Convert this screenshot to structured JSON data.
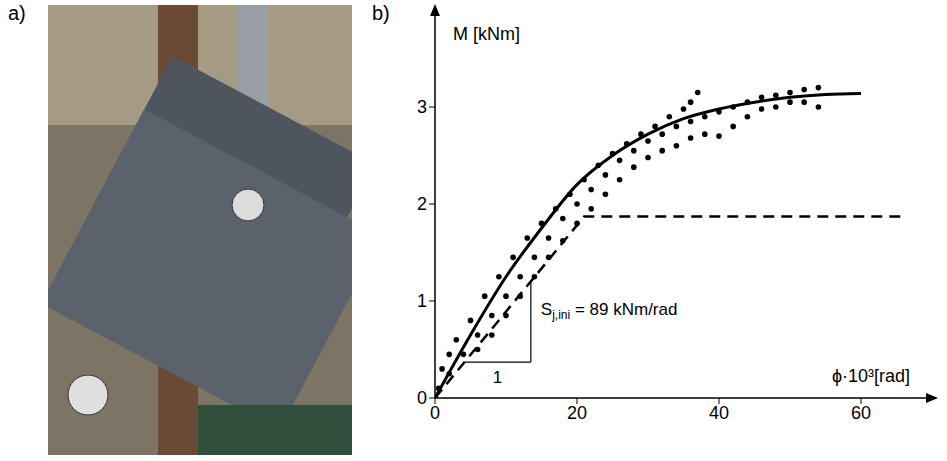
{
  "panel_labels": [
    "a)",
    "b)"
  ],
  "chart_data": {
    "type": "line",
    "x_label": "ϕ·10³[rad]",
    "y_label": "M [kNm]",
    "xlim": [
      0,
      70
    ],
    "ylim": [
      0,
      4
    ],
    "xticks": [
      0,
      20,
      40,
      60
    ],
    "yticks": [
      0,
      1,
      2,
      3
    ],
    "grid": false,
    "series": [
      {
        "type": "scatter",
        "marker": "dot",
        "color": "#000000",
        "x": [
          0,
          0.5,
          1,
          2,
          3,
          5,
          7,
          9,
          11,
          13,
          15,
          17,
          19,
          21,
          23,
          25,
          27,
          29,
          31,
          33,
          35,
          36,
          37,
          2,
          4,
          6,
          8,
          10,
          12,
          14,
          16,
          18,
          20,
          22,
          24,
          26,
          28,
          30,
          32,
          34,
          36,
          38,
          40,
          42,
          44,
          46,
          48,
          50,
          52,
          54,
          6,
          8,
          10,
          12,
          14,
          16,
          18,
          20,
          22,
          24,
          26,
          28,
          30,
          32,
          34,
          36,
          38,
          40,
          42,
          44,
          46,
          48,
          50,
          52,
          54
        ],
        "values": [
          0,
          0.1,
          0.3,
          0.45,
          0.6,
          0.8,
          1.05,
          1.25,
          1.45,
          1.65,
          1.8,
          1.95,
          2.1,
          2.25,
          2.4,
          2.52,
          2.62,
          2.72,
          2.8,
          2.9,
          2.98,
          3.05,
          3.15,
          0.25,
          0.45,
          0.65,
          0.85,
          1.05,
          1.25,
          1.45,
          1.65,
          1.85,
          2.0,
          2.15,
          2.3,
          2.45,
          2.55,
          2.65,
          2.72,
          2.8,
          2.85,
          2.9,
          2.95,
          3.0,
          3.05,
          3.1,
          3.12,
          3.15,
          3.18,
          3.2,
          0.5,
          0.65,
          0.85,
          1.05,
          1.25,
          1.45,
          1.62,
          1.8,
          1.95,
          2.1,
          2.25,
          2.38,
          2.48,
          2.55,
          2.6,
          2.68,
          2.72,
          2.7,
          2.8,
          2.9,
          2.98,
          3.0,
          3.05,
          3.05,
          3.0
        ]
      },
      {
        "type": "line",
        "line_style": "solid",
        "color": "#000000",
        "x": [
          0,
          5,
          10,
          15,
          20,
          25,
          30,
          35,
          40,
          45,
          50,
          55,
          60
        ],
        "values": [
          0,
          0.65,
          1.25,
          1.75,
          2.2,
          2.5,
          2.72,
          2.88,
          2.98,
          3.05,
          3.1,
          3.13,
          3.14
        ]
      },
      {
        "type": "line",
        "line_style": "dashed",
        "color": "#000000",
        "x": [
          0,
          21,
          66
        ],
        "values": [
          0,
          1.87,
          1.87
        ]
      }
    ],
    "annotations": [
      {
        "text": "S",
        "subscript": "j,ini",
        "suffix": " = 89 kNm/rad"
      },
      {
        "text": "1"
      }
    ]
  }
}
